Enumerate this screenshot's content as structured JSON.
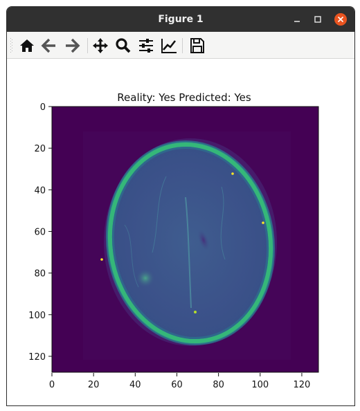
{
  "window": {
    "title": "Figure 1"
  },
  "toolbar": {
    "buttons": [
      {
        "icon": "home-icon",
        "label": "Home"
      },
      {
        "icon": "back-arrow-icon",
        "label": "Back"
      },
      {
        "icon": "forward-arrow-icon",
        "label": "Forward"
      },
      {
        "icon": "pan-move-icon",
        "label": "Pan"
      },
      {
        "icon": "zoom-magnifier-icon",
        "label": "Zoom"
      },
      {
        "icon": "sliders-icon",
        "label": "Configure subplots"
      },
      {
        "icon": "line-chart-icon",
        "label": "Edit axis"
      },
      {
        "icon": "save-floppy-icon",
        "label": "Save"
      }
    ]
  },
  "figure": {
    "title": "Reality: Yes Predicted: Yes"
  },
  "chart_data": {
    "type": "heatmap",
    "title": "Reality: Yes Predicted: Yes",
    "xlabel": "",
    "ylabel": "",
    "xlim": [
      0,
      128
    ],
    "ylim": [
      128,
      0
    ],
    "x_ticks": [
      "0",
      "20",
      "40",
      "60",
      "80",
      "100",
      "120"
    ],
    "y_ticks": [
      "0",
      "20",
      "40",
      "60",
      "80",
      "100",
      "120"
    ],
    "image_size": [
      128,
      128
    ],
    "colormap": "viridis",
    "colors": {
      "background": "#440154",
      "tissue": "#3b528b",
      "skull": "#35b779",
      "highlight": "#fde725"
    }
  }
}
